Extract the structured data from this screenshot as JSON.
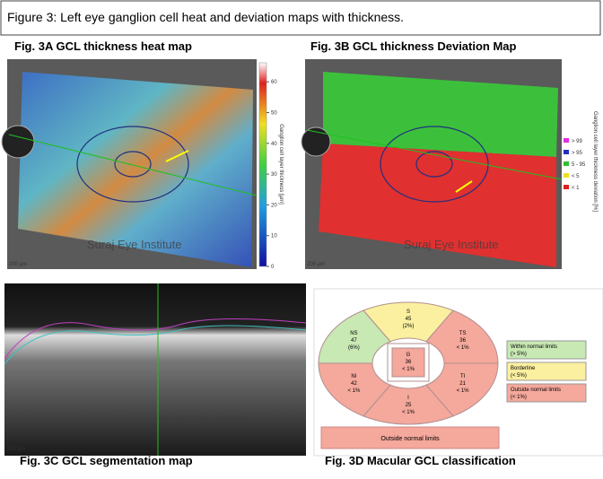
{
  "figure_title": "Figure 3: Left eye ganglion cell heat  and deviation maps with thickness.",
  "heatmap": {
    "caption": "Fig. 3A GCL thickness heat map",
    "watermark": "Suraj Eye Institute",
    "scale_bar": "200 µm",
    "colorbar_label": "Ganglion cell layer thickness [µm]",
    "colorbar_ticks": [
      0,
      10,
      20,
      30,
      40,
      50,
      60
    ]
  },
  "deviation": {
    "caption": "Fig. 3B GCL thickness Deviation Map",
    "watermark": "Suraj Eye Institute",
    "scale_bar": "200 µm",
    "legend_label": "Ganglion cell layer thickness deviation [%]",
    "legend": [
      {
        "label": "> 99",
        "color": "#e030e0"
      },
      {
        "label": "> 95",
        "color": "#2030c0"
      },
      {
        "label": "5 - 95",
        "color": "#30c030"
      },
      {
        "label": "< 5",
        "color": "#f0e020"
      },
      {
        "label": "< 1",
        "color": "#e02020"
      }
    ]
  },
  "segmentation": {
    "caption": "Fig. 3C GCL segmentation map",
    "watermark": "Suraj Eye Institute",
    "scale_bar": "200 µm"
  },
  "classification": {
    "caption": "Fig. 3D Macular GCL classification",
    "sectors": [
      {
        "id": "S",
        "value": "45",
        "percent": "(2%)",
        "color": "#faf0a0"
      },
      {
        "id": "TS",
        "value": "36",
        "percent": "< 1%",
        "color": "#f5a89c"
      },
      {
        "id": "TI",
        "value": "21",
        "percent": "< 1%",
        "color": "#f5a89c"
      },
      {
        "id": "I",
        "value": "25",
        "percent": "< 1%",
        "color": "#f5a89c"
      },
      {
        "id": "NI",
        "value": "42",
        "percent": "< 1%",
        "color": "#f5a89c"
      },
      {
        "id": "NS",
        "value": "47",
        "percent": "(6%)",
        "color": "#c8e8b4"
      }
    ],
    "center": {
      "id": "G",
      "value": "36",
      "percent": "< 1%",
      "color": "#f5a89c"
    },
    "legend": [
      {
        "label": "Within normal limits",
        "note": "(> 5%)",
        "color": "#c8e8b4"
      },
      {
        "label": "Borderline",
        "note": "(< 5%)",
        "color": "#faf0a0"
      },
      {
        "label": "Outside normal limits",
        "note": "(< 1%)",
        "color": "#f5a89c"
      }
    ],
    "summary": "Outside normal limits"
  }
}
